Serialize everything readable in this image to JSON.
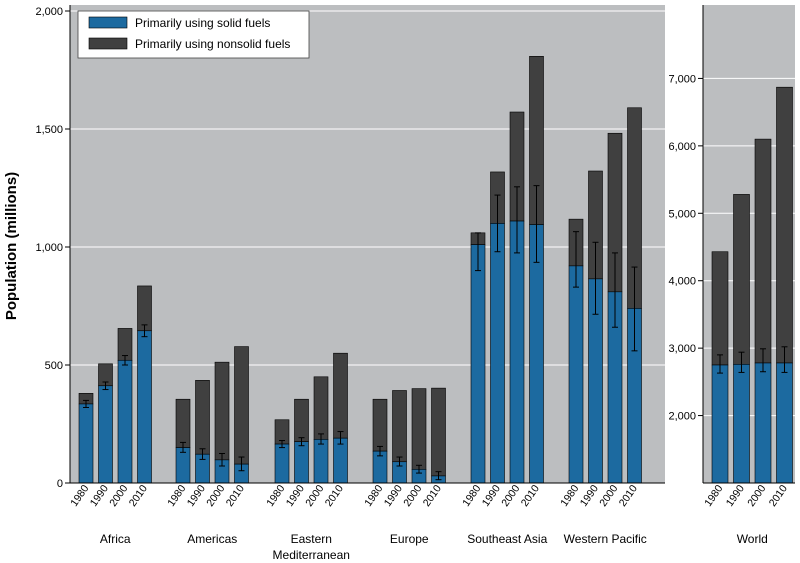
{
  "chart_data": {
    "type": "bar",
    "stacked": true,
    "ylabel": "Population (millions)",
    "colors": {
      "solid": "#1c6aa0",
      "nonsolid": "#404040",
      "background": "#bcbec0",
      "grid": "#ffffff"
    },
    "legend": {
      "placement": "top-left",
      "items": [
        {
          "label": "Primarily using solid fuels",
          "color": "#1c6aa0"
        },
        {
          "label": "Primarily using nonsolid fuels",
          "color": "#404040"
        }
      ]
    },
    "panels": [
      {
        "name": "regions",
        "ylim": [
          0,
          2000
        ],
        "yticks": [
          0,
          500,
          1000,
          1500,
          2000
        ],
        "ytick_labels": [
          "0",
          "500",
          "1,000",
          "1,500",
          "2,000"
        ],
        "groups": [
          {
            "name": "Africa",
            "label_lines": [
              "Africa"
            ],
            "years": [
              "1980",
              "1990",
              "2000",
              "2010"
            ],
            "solid": [
              335,
              412,
              520,
              645
            ],
            "total": [
              380,
              505,
              655,
              835
            ],
            "err_low": [
              320,
              396,
              500,
              620
            ],
            "err_high": [
              350,
              428,
              540,
              670
            ]
          },
          {
            "name": "Americas",
            "label_lines": [
              "Americas"
            ],
            "years": [
              "1980",
              "1990",
              "2000",
              "2010"
            ],
            "solid": [
              150,
              122,
              98,
              80
            ],
            "total": [
              355,
              435,
              512,
              578
            ],
            "err_low": [
              130,
              100,
              72,
              52
            ],
            "err_high": [
              172,
              145,
              125,
              110
            ]
          },
          {
            "name": "Eastern Mediterranean",
            "label_lines": [
              "Eastern",
              "Mediterranean"
            ],
            "years": [
              "1980",
              "1990",
              "2000",
              "2010"
            ],
            "solid": [
              165,
              175,
              185,
              190
            ],
            "total": [
              268,
              355,
              450,
              550
            ],
            "err_low": [
              150,
              158,
              165,
              165
            ],
            "err_high": [
              180,
              192,
              208,
              218
            ]
          },
          {
            "name": "Europe",
            "label_lines": [
              "Europe"
            ],
            "years": [
              "1980",
              "1990",
              "2000",
              "2010"
            ],
            "solid": [
              135,
              90,
              58,
              30
            ],
            "total": [
              355,
              392,
              400,
              402
            ],
            "err_low": [
              115,
              72,
              42,
              14
            ],
            "err_high": [
              155,
              110,
              75,
              48
            ]
          },
          {
            "name": "Southeast Asia",
            "label_lines": [
              "Southeast Asia"
            ],
            "years": [
              "1980",
              "1990",
              "2000",
              "2010"
            ],
            "solid": [
              1010,
              1100,
              1110,
              1095
            ],
            "total": [
              1060,
              1318,
              1572,
              1808
            ],
            "err_low": [
              900,
              980,
              975,
              935
            ],
            "err_high": [
              1060,
              1220,
              1255,
              1260
            ]
          },
          {
            "name": "Western Pacific",
            "label_lines": [
              "Western Pacific"
            ],
            "years": [
              "1980",
              "1990",
              "2000",
              "2010"
            ],
            "solid": [
              920,
              865,
              810,
              740
            ],
            "total": [
              1118,
              1322,
              1482,
              1590
            ],
            "err_low": [
              830,
              715,
              660,
              560
            ],
            "err_high": [
              1065,
              1020,
              975,
              915
            ]
          }
        ]
      },
      {
        "name": "world",
        "ylim": [
          1000,
          8000
        ],
        "yticks": [
          2000,
          3000,
          4000,
          5000,
          6000,
          7000
        ],
        "ytick_labels": [
          "2,000",
          "3,000",
          "4,000",
          "5,000",
          "6,000",
          "7,000"
        ],
        "groups": [
          {
            "name": "World",
            "label_lines": [
              "World"
            ],
            "years": [
              "1980",
              "1990",
              "2000",
              "2010"
            ],
            "solid": [
              2750,
              2760,
              2780,
              2780
            ],
            "total": [
              4430,
              5280,
              6100,
              6870
            ],
            "err_low": [
              2630,
              2640,
              2650,
              2640
            ],
            "err_high": [
              2900,
              2940,
              2990,
              3020
            ]
          }
        ]
      }
    ]
  }
}
